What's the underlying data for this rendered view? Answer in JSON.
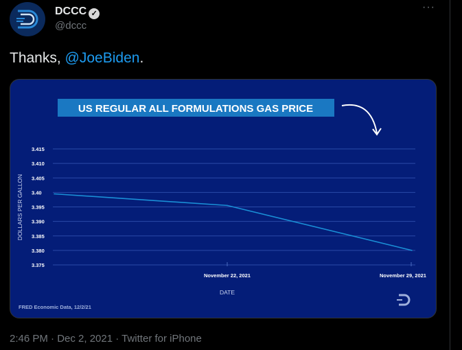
{
  "tweet": {
    "author_name": "DCCC",
    "handle": "@dccc",
    "text_prefix": "Thanks, ",
    "mention": "@JoeBiden",
    "text_suffix": ".",
    "timestamp": "2:46 PM · Dec 2, 2021 · Twitter for iPhone",
    "more_icon": "more-horizontal-icon",
    "verified_icon": "verified-badge-icon",
    "link_color": "#1d9bf0"
  },
  "chart_data": {
    "type": "line",
    "title": "US REGULAR ALL FORMULATIONS GAS PRICE",
    "xlabel": "DATE",
    "ylabel": "DOLLARS PER GALLON",
    "source": "FRED Economic Data, 12/2/21",
    "x_tick_labels": [
      "November 22, 2021",
      "November 29, 2021"
    ],
    "y_ticks": [
      "3.375",
      "3.380",
      "3.385",
      "3.390",
      "3.395",
      "3.40",
      "3.405",
      "3.410",
      "3.415"
    ],
    "ylim": [
      3.375,
      3.415
    ],
    "grid": true,
    "points": [
      {
        "x": "2021-11-15",
        "y": 3.3995
      },
      {
        "x": "2021-11-22",
        "y": 3.3955
      },
      {
        "x": "2021-11-29",
        "y": 3.38
      }
    ],
    "colors": {
      "background": "#041d78",
      "line": "#1a8fd6",
      "title_bg": "#1a78c2",
      "grid": "#2a4aa8"
    }
  }
}
